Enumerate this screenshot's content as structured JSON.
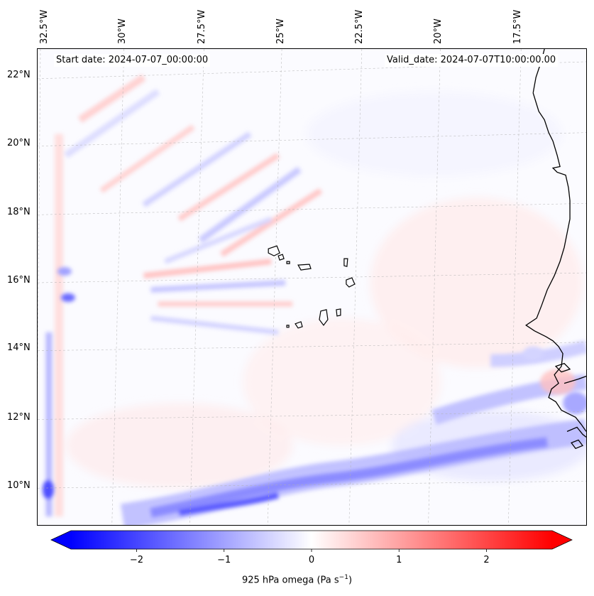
{
  "header": {
    "start_date": "Start date: 2024-07-07_00:00:00",
    "valid_date": "Valid_date: 2024-07-07T10:00:00.00"
  },
  "map": {
    "variable": "925 hPa omega",
    "units_prefix": "925 hPa omega (Pa s",
    "units_exp": "−1",
    "units_suffix": ")",
    "lon_labels": [
      "32.5°W",
      "30°W",
      "27.5°W",
      "25°W",
      "22.5°W",
      "20°W",
      "17.5°W"
    ],
    "lat_labels": [
      "22°N",
      "20°N",
      "18°N",
      "16°N",
      "14°N",
      "12°N",
      "10°N"
    ],
    "colors": {
      "negative": "#0000ff",
      "positive": "#ff0000",
      "neutral": "#ffffff",
      "coastline": "#000000",
      "gridline": "#b0b0b0"
    }
  },
  "colorbar": {
    "min": -2.75,
    "max": 2.75,
    "ticks": [
      {
        "value": -2,
        "label": "−2"
      },
      {
        "value": -1,
        "label": "−1"
      },
      {
        "value": 0,
        "label": "0"
      },
      {
        "value": 1,
        "label": "1"
      },
      {
        "value": 2,
        "label": "2"
      }
    ]
  }
}
